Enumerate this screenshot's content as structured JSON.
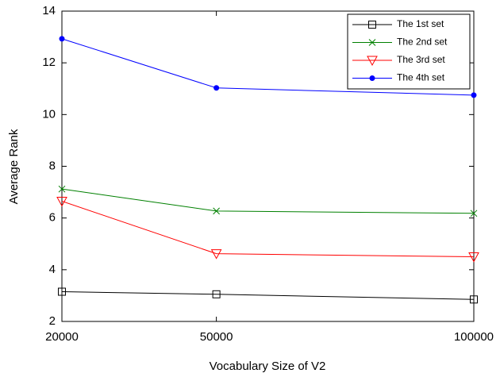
{
  "chart_data": {
    "type": "line",
    "x_label": "Vocabulary Size of V2",
    "y_label": "Average Rank",
    "x": [
      20000,
      50000,
      100000
    ],
    "xlim": [
      20000,
      100000
    ],
    "xticks": [
      20000,
      50000,
      100000
    ],
    "ylim": [
      2,
      14
    ],
    "yticks": [
      2,
      4,
      6,
      8,
      10,
      12,
      14
    ],
    "grid": false,
    "legend": "top-right",
    "series": [
      {
        "name": "The 1st set",
        "color": "#000000",
        "marker": "square",
        "values": [
          3.15,
          3.05,
          2.85
        ]
      },
      {
        "name": "The 2nd set",
        "color": "#008000",
        "marker": "x",
        "values": [
          7.12,
          6.27,
          6.18
        ]
      },
      {
        "name": "The 3rd set",
        "color": "#ff0000",
        "marker": "triangle-down",
        "values": [
          6.65,
          4.62,
          4.5
        ]
      },
      {
        "name": "The 4th set",
        "color": "#0000ff",
        "marker": "circle",
        "values": [
          12.93,
          11.03,
          10.75
        ]
      }
    ]
  }
}
